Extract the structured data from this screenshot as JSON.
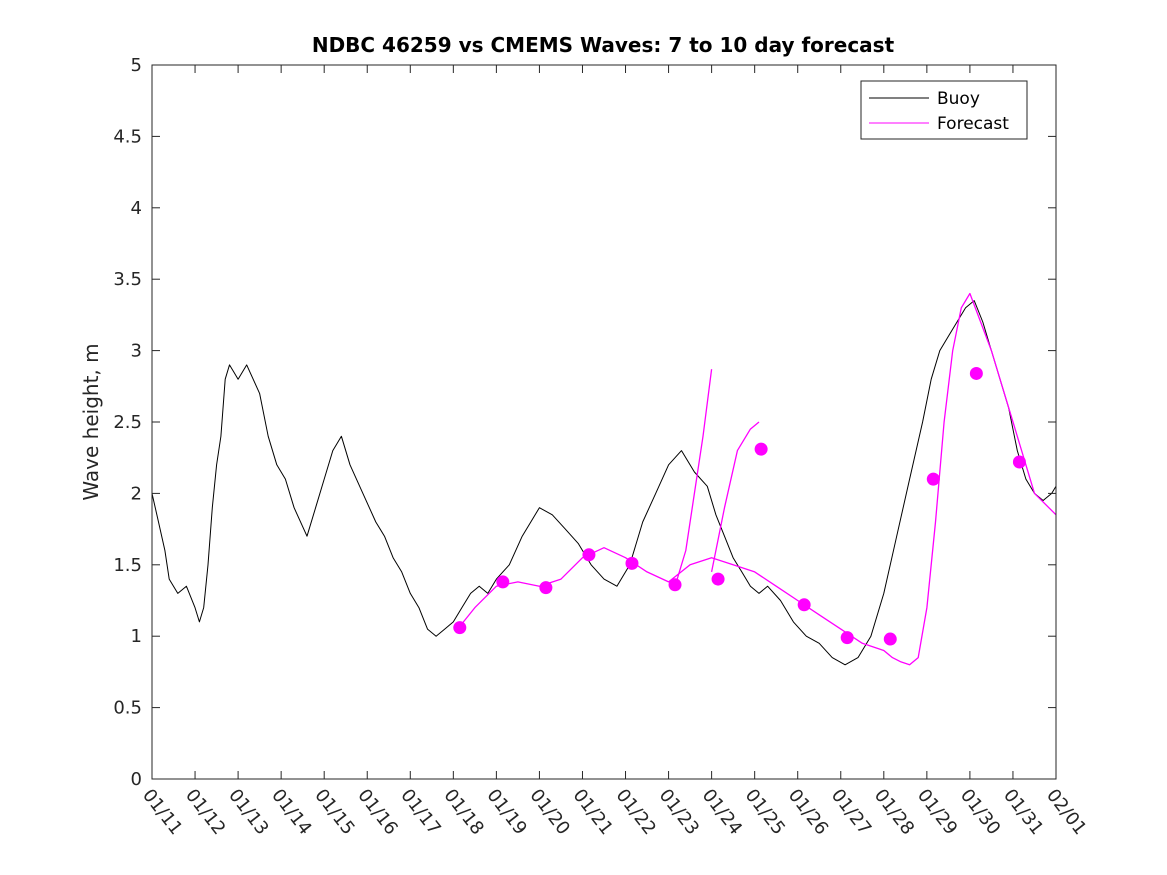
{
  "chart_data": {
    "type": "line",
    "title": "NDBC 46259 vs CMEMS Waves: 7 to 10 day forecast",
    "xlabel": "",
    "ylabel": "Wave height, m",
    "xlim": [
      "01/11",
      "02/01"
    ],
    "ylim": [
      0,
      5
    ],
    "yticks": [
      "0",
      "0.5",
      "1",
      "1.5",
      "2",
      "2.5",
      "3",
      "3.5",
      "4",
      "4.5",
      "5"
    ],
    "xticks": [
      "01/11",
      "01/12",
      "01/13",
      "01/14",
      "01/15",
      "01/16",
      "01/17",
      "01/18",
      "01/19",
      "01/20",
      "01/21",
      "01/22",
      "01/23",
      "01/24",
      "01/25",
      "01/26",
      "01/27",
      "01/28",
      "01/29",
      "01/30",
      "01/31",
      "02/01"
    ],
    "grid": false,
    "legend_position": "top-right",
    "legend": [
      "Buoy",
      "Forecast"
    ],
    "colors": {
      "buoy": "#000000",
      "forecast": "#ff00ff"
    },
    "series": [
      {
        "name": "Buoy",
        "x_unit": "days from 01/11",
        "x": [
          0,
          0.15,
          0.3,
          0.4,
          0.6,
          0.8,
          1.0,
          1.1,
          1.2,
          1.3,
          1.4,
          1.5,
          1.6,
          1.7,
          1.8,
          1.9,
          2.0,
          2.2,
          2.5,
          2.7,
          2.9,
          3.1,
          3.3,
          3.6,
          3.8,
          4.0,
          4.2,
          4.4,
          4.6,
          4.9,
          5.2,
          5.4,
          5.6,
          5.8,
          6.0,
          6.2,
          6.4,
          6.6,
          6.8,
          7.0,
          7.2,
          7.4,
          7.6,
          7.8,
          8.0,
          8.3,
          8.6,
          8.8,
          9.0,
          9.3,
          9.6,
          9.9,
          10.2,
          10.5,
          10.8,
          11.1,
          11.4,
          11.7,
          12.0,
          12.3,
          12.6,
          12.9,
          13.1,
          13.3,
          13.5,
          13.7,
          13.9,
          14.1,
          14.3,
          14.6,
          14.9,
          15.2,
          15.5,
          15.8,
          16.1,
          16.4,
          16.7,
          17.0,
          17.3,
          17.6,
          17.9,
          18.1,
          18.3,
          18.5,
          18.7,
          18.9,
          19.1,
          19.3,
          19.5,
          19.7,
          19.9,
          20.1,
          20.3,
          20.5,
          20.7,
          20.9,
          21.0
        ],
        "values": [
          2.0,
          1.8,
          1.6,
          1.4,
          1.3,
          1.35,
          1.2,
          1.1,
          1.2,
          1.5,
          1.9,
          2.2,
          2.4,
          2.8,
          2.9,
          2.85,
          2.8,
          2.9,
          2.7,
          2.4,
          2.2,
          2.1,
          1.9,
          1.7,
          1.9,
          2.1,
          2.3,
          2.4,
          2.2,
          2.0,
          1.8,
          1.7,
          1.55,
          1.45,
          1.3,
          1.2,
          1.05,
          1.0,
          1.05,
          1.1,
          1.2,
          1.3,
          1.35,
          1.3,
          1.4,
          1.5,
          1.7,
          1.8,
          1.9,
          1.85,
          1.75,
          1.65,
          1.5,
          1.4,
          1.35,
          1.5,
          1.8,
          2.0,
          2.2,
          2.3,
          2.15,
          2.05,
          1.85,
          1.7,
          1.55,
          1.45,
          1.35,
          1.3,
          1.35,
          1.25,
          1.1,
          1.0,
          0.95,
          0.85,
          0.8,
          0.85,
          1.0,
          1.3,
          1.7,
          2.1,
          2.5,
          2.8,
          3.0,
          3.1,
          3.2,
          3.3,
          3.35,
          3.2,
          3.0,
          2.8,
          2.6,
          2.3,
          2.1,
          2.0,
          1.95,
          2.0,
          2.05
        ]
      },
      {
        "name": "Forecast",
        "x": [
          7.1,
          7.5,
          8.0,
          8.5,
          9.0,
          9.5,
          10.0,
          10.5,
          11.0,
          11.5,
          12.0,
          12.5,
          13.0,
          13.5,
          14.0,
          14.5,
          15.0,
          15.5,
          16.0,
          16.5,
          17.0,
          17.2,
          17.4,
          17.6,
          17.8,
          18.0,
          18.2,
          18.4,
          18.6,
          18.8,
          19.0,
          19.5,
          20.0,
          20.5,
          21.0
        ],
        "values": [
          1.05,
          1.2,
          1.35,
          1.38,
          1.35,
          1.4,
          1.55,
          1.62,
          1.55,
          1.45,
          1.38,
          1.5,
          1.55,
          1.5,
          1.45,
          1.35,
          1.25,
          1.15,
          1.05,
          0.95,
          0.9,
          0.85,
          0.82,
          0.8,
          0.85,
          1.2,
          1.8,
          2.5,
          3.0,
          3.3,
          3.4,
          3.0,
          2.5,
          2.0,
          1.85
        ]
      },
      {
        "name": "Forecast",
        "x": [
          12.2,
          12.4,
          12.6,
          12.8,
          13.0
        ],
        "values": [
          1.4,
          1.6,
          2.0,
          2.4,
          2.87
        ]
      },
      {
        "name": "Forecast",
        "x": [
          13.0,
          13.3,
          13.6,
          13.9,
          14.1
        ],
        "values": [
          1.45,
          1.9,
          2.3,
          2.45,
          2.5
        ]
      }
    ],
    "markers": {
      "name": "Forecast",
      "x": [
        7.15,
        8.15,
        9.15,
        10.15,
        11.15,
        12.15,
        13.15,
        14.15,
        15.15,
        16.15,
        17.15,
        18.15,
        19.15,
        20.15
      ],
      "values": [
        1.06,
        1.38,
        1.34,
        1.57,
        1.51,
        1.36,
        1.4,
        2.31,
        1.22,
        0.99,
        0.98,
        2.1,
        2.84,
        2.22
      ]
    }
  }
}
